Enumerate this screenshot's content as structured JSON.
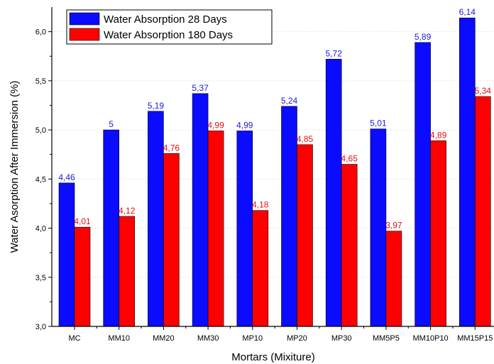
{
  "chart_data": {
    "type": "bar",
    "categories": [
      "MC",
      "MM10",
      "MM20",
      "MM30",
      "MP10",
      "MP20",
      "MP30",
      "MM5P5",
      "MM10P10",
      "MM15P15"
    ],
    "series": [
      {
        "name": "Water Absorption 28 Days",
        "color": "#0b0bff",
        "label_color": "#1a1ad6",
        "values": [
          4.46,
          5,
          5.19,
          5.37,
          4.99,
          5.24,
          5.72,
          5.01,
          5.89,
          6.14
        ],
        "labels": [
          "4,46",
          "5",
          "5,19",
          "5,37",
          "4,99",
          "5,24",
          "5,72",
          "5,01",
          "5,89",
          "6,14"
        ]
      },
      {
        "name": "Water Absorption 180 Days",
        "color": "#ff0000",
        "label_color": "#e41010",
        "values": [
          4.01,
          4.12,
          4.76,
          4.99,
          4.18,
          4.85,
          4.65,
          3.97,
          4.89,
          5.34
        ],
        "labels": [
          "4,01",
          "4,12",
          "4,76",
          "4,99",
          "4,18",
          "4,85",
          "4,65",
          "3,97",
          "4,89",
          "5,34"
        ]
      }
    ],
    "title": "",
    "xlabel": "Mortars (Mixiture)",
    "ylabel": "Water Asorption After Immersion (%)",
    "ylim": [
      3.0,
      6.25
    ],
    "yticks": [
      3.0,
      3.5,
      4.0,
      4.5,
      5.0,
      5.5,
      6.0
    ],
    "ytick_labels": [
      "3,0",
      "3,5",
      "4,0",
      "4,5",
      "5,0",
      "5,5",
      "6,0"
    ],
    "grid": true,
    "legend_position": "top-left"
  }
}
